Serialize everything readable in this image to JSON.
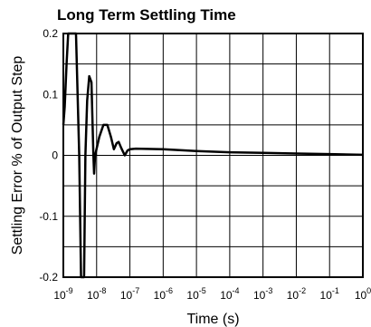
{
  "chart_data": {
    "type": "line",
    "title": "Long Term Settling Time",
    "xlabel": "Time (s)",
    "ylabel": "Settling Error % of Output Step",
    "x_scale": "log",
    "xlim": [
      1e-09,
      1
    ],
    "ylim": [
      -0.2,
      0.2
    ],
    "grid": true,
    "x_ticks": [
      {
        "base": "10",
        "exp": "-9",
        "value": 1e-09
      },
      {
        "base": "10",
        "exp": "-8",
        "value": 1e-08
      },
      {
        "base": "10",
        "exp": "-7",
        "value": 1e-07
      },
      {
        "base": "10",
        "exp": "-6",
        "value": 1e-06
      },
      {
        "base": "10",
        "exp": "-5",
        "value": 1e-05
      },
      {
        "base": "10",
        "exp": "-4",
        "value": 0.0001
      },
      {
        "base": "10",
        "exp": "-3",
        "value": 0.001
      },
      {
        "base": "10",
        "exp": "-2",
        "value": 0.01
      },
      {
        "base": "10",
        "exp": "-1",
        "value": 0.1
      },
      {
        "base": "10",
        "exp": "0",
        "value": 1
      }
    ],
    "y_ticks": [
      {
        "label": "0.2",
        "value": 0.2
      },
      {
        "label": "0.1",
        "value": 0.1
      },
      {
        "label": "0",
        "value": 0
      },
      {
        "label": "-0.1",
        "value": -0.1
      },
      {
        "label": "-0.2",
        "value": -0.2
      }
    ],
    "series": [
      {
        "color": "#000000",
        "points": [
          [
            1e-09,
            0.05
          ],
          [
            1.1e-09,
            0.08
          ],
          [
            1.25e-09,
            0.15
          ],
          [
            1.4e-09,
            0.2
          ],
          [
            2.4e-09,
            0.2
          ],
          [
            3e-09,
            0.0
          ],
          [
            3.4e-09,
            -0.2
          ],
          [
            4.2e-09,
            -0.2
          ],
          [
            4.6e-09,
            0.0
          ],
          [
            5.2e-09,
            0.09
          ],
          [
            6e-09,
            0.13
          ],
          [
            7e-09,
            0.12
          ],
          [
            8e-09,
            0.0
          ],
          [
            8.4e-09,
            -0.03
          ],
          [
            9e-09,
            0.0
          ],
          [
            1.2e-08,
            0.03
          ],
          [
            1.6e-08,
            0.05
          ],
          [
            2.1e-08,
            0.05
          ],
          [
            2.7e-08,
            0.03
          ],
          [
            3.3e-08,
            0.01
          ],
          [
            4e-08,
            0.02
          ],
          [
            4.6e-08,
            0.022
          ],
          [
            5.5e-08,
            0.012
          ],
          [
            7e-08,
            0.0
          ],
          [
            8.5e-08,
            0.008
          ],
          [
            1e-07,
            0.01
          ],
          [
            1.5e-07,
            0.011
          ],
          [
            1e-06,
            0.01
          ],
          [
            1e-05,
            0.007
          ],
          [
            0.0001,
            0.005
          ],
          [
            0.001,
            0.004
          ],
          [
            0.01,
            0.003
          ],
          [
            0.1,
            0.002
          ],
          [
            1.0,
            0.001
          ]
        ]
      }
    ]
  }
}
